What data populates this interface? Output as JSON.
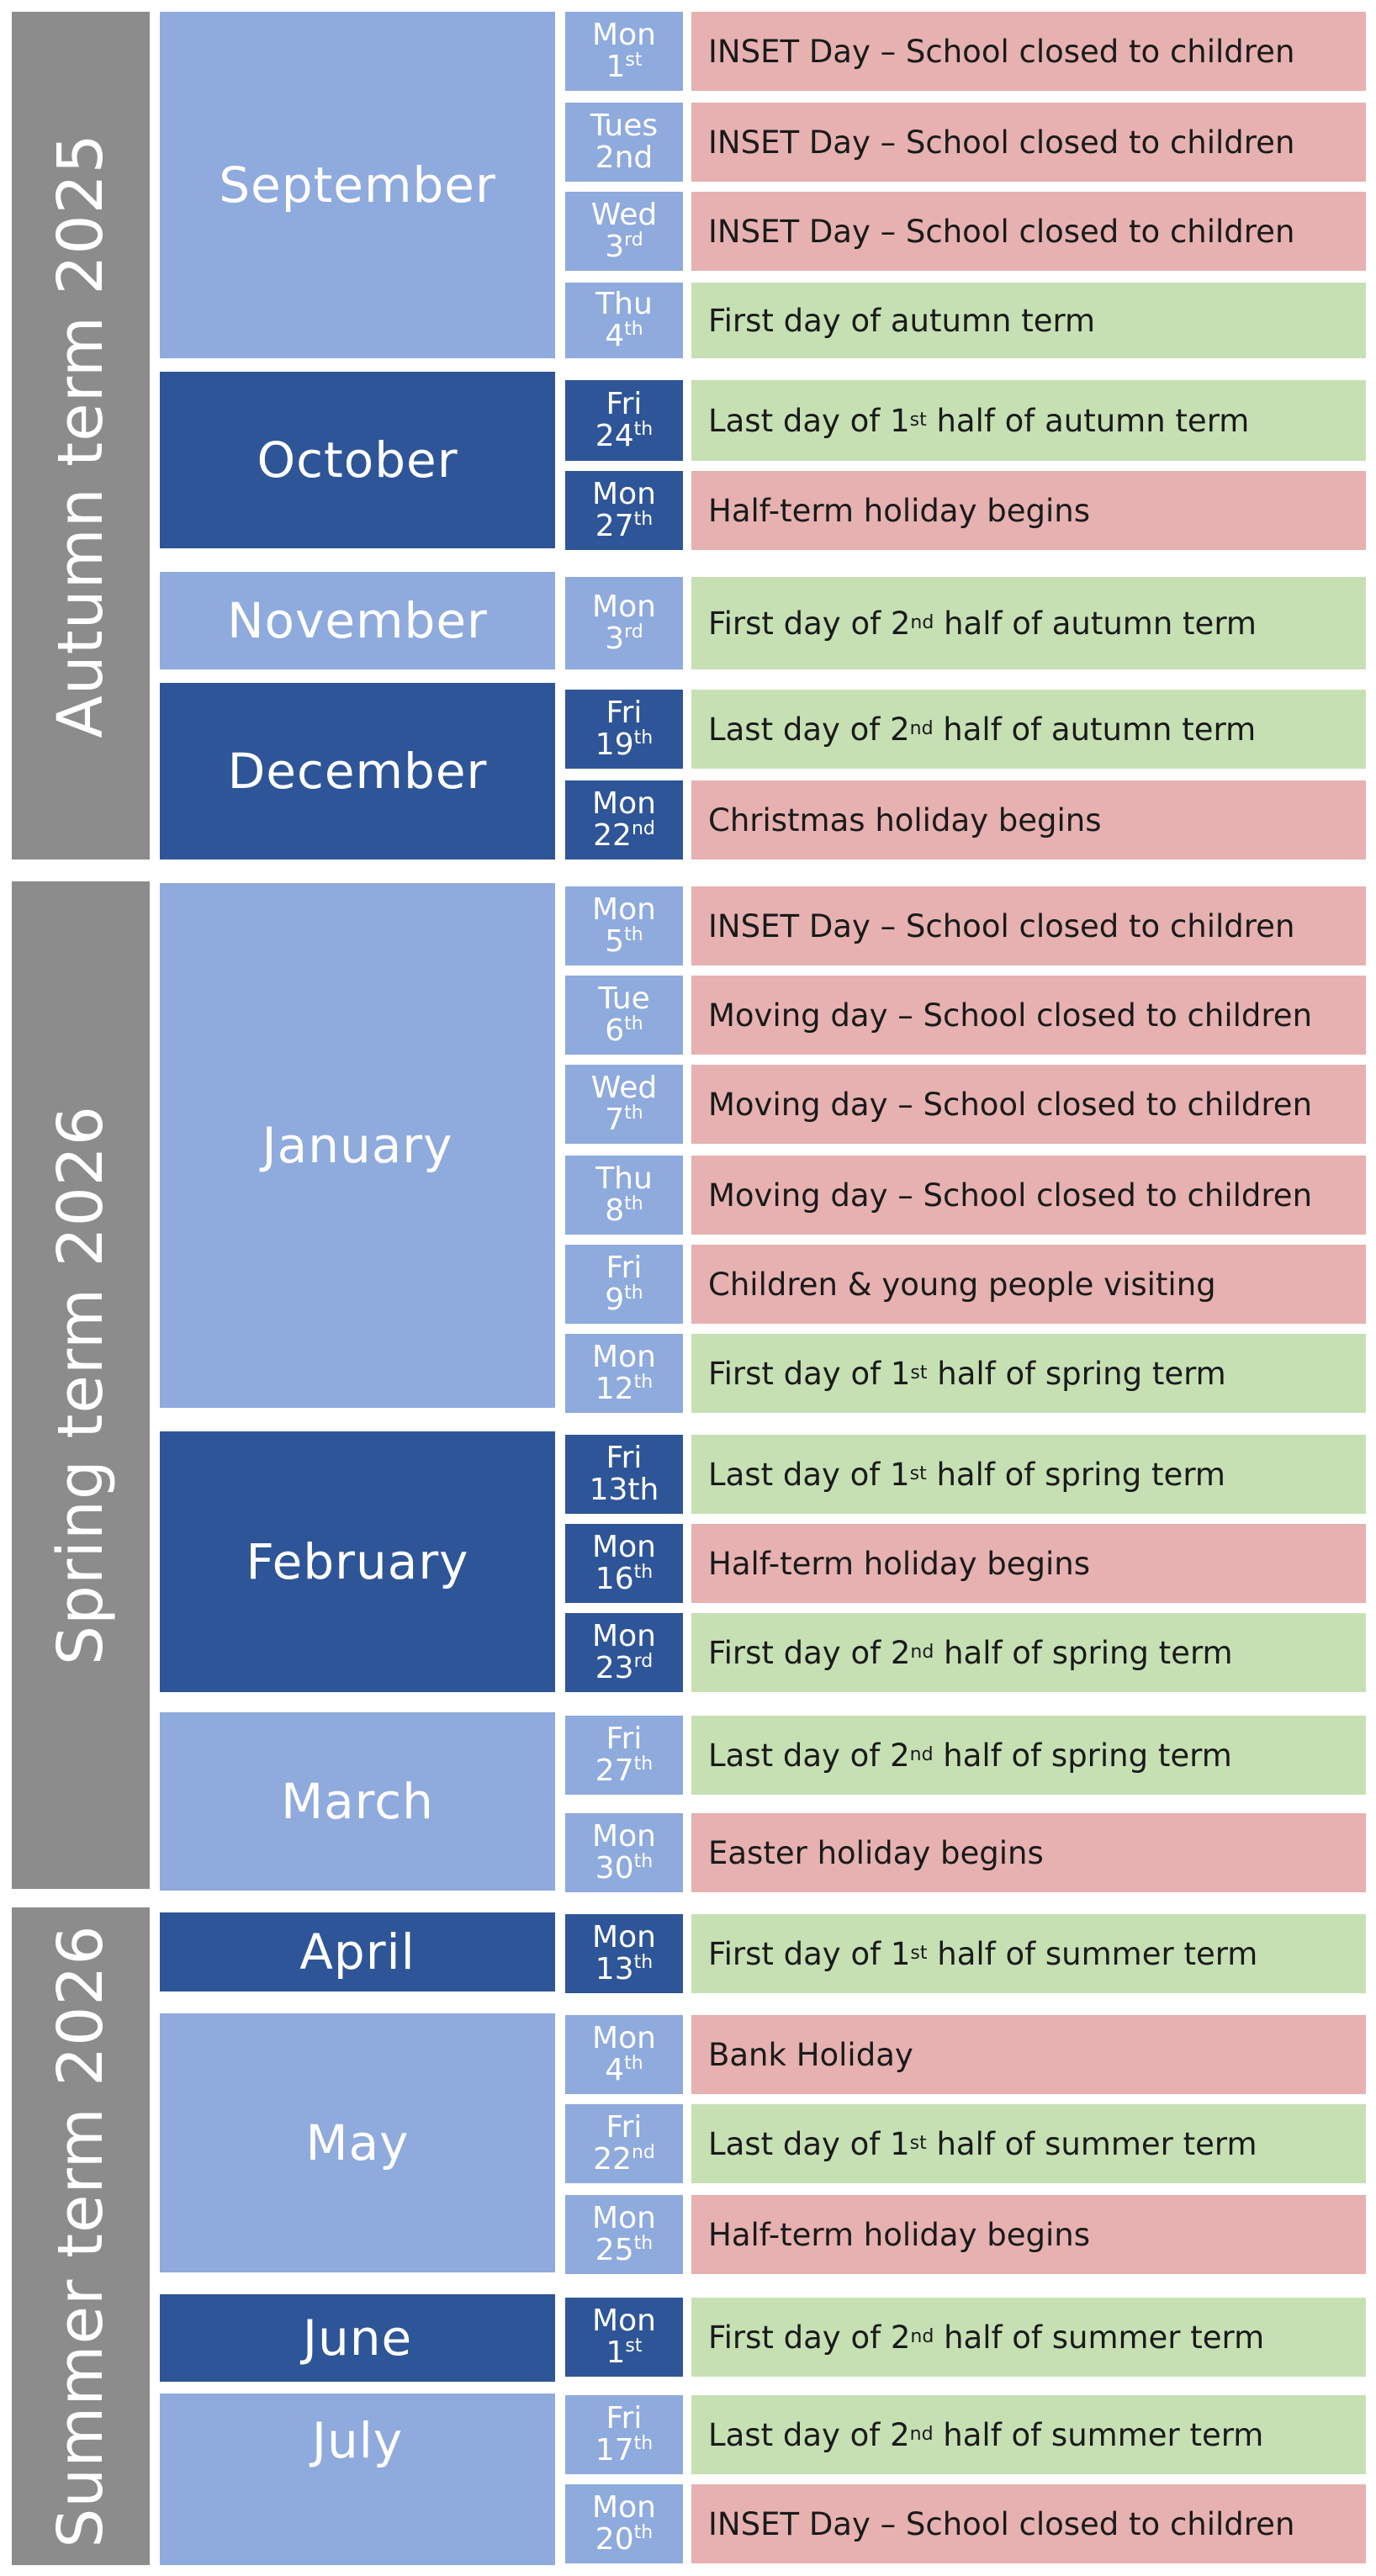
{
  "terms": [
    {
      "label": "Autumn term 2025"
    },
    {
      "label": "Spring term 2026"
    },
    {
      "label": "Summer term 2026"
    }
  ],
  "months": [
    {
      "name": "September",
      "shade": "light"
    },
    {
      "name": "October",
      "shade": "dark"
    },
    {
      "name": "November",
      "shade": "light"
    },
    {
      "name": "December",
      "shade": "dark"
    },
    {
      "name": "January",
      "shade": "light"
    },
    {
      "name": "February",
      "shade": "dark"
    },
    {
      "name": "March",
      "shade": "light"
    },
    {
      "name": "April",
      "shade": "dark"
    },
    {
      "name": "May",
      "shade": "light"
    },
    {
      "name": "June",
      "shade": "dark"
    },
    {
      "name": "July",
      "shade": "light"
    }
  ],
  "entries": [
    {
      "day": "Mon",
      "num": "1",
      "suffix": "st",
      "type": "closed",
      "text": "INSET Day – School closed to children"
    },
    {
      "day": "Tues",
      "num": "2nd",
      "suffix": "",
      "type": "closed",
      "text": "INSET Day – School closed to children"
    },
    {
      "day": "Wed",
      "num": "3",
      "suffix": "rd",
      "type": "closed",
      "text": "INSET Day – School closed to children"
    },
    {
      "day": "Thu",
      "num": "4",
      "suffix": "th",
      "type": "open",
      "text": "First day of autumn term"
    },
    {
      "day": "Fri",
      "num": "24",
      "suffix": "th",
      "type": "open",
      "text": "Last day of 1",
      "textSup": "st",
      "textAfter": " half of autumn term"
    },
    {
      "day": "Mon",
      "num": "27",
      "suffix": "th",
      "type": "closed",
      "text": "Half-term holiday begins"
    },
    {
      "day": "Mon",
      "num": "3",
      "suffix": "rd",
      "type": "open",
      "text": "First day of 2",
      "textSup": "nd",
      "textAfter": " half of autumn term"
    },
    {
      "day": "Fri",
      "num": "19",
      "suffix": "th",
      "type": "open",
      "text": "Last day of 2",
      "textSup": "nd",
      "textAfter": " half of autumn term"
    },
    {
      "day": "Mon",
      "num": "22",
      "suffix": "nd",
      "type": "closed",
      "text": "Christmas holiday begins"
    },
    {
      "day": "Mon",
      "num": "5",
      "suffix": "th",
      "type": "closed",
      "text": "INSET Day – School closed to children"
    },
    {
      "day": "Tue",
      "num": "6",
      "suffix": "th",
      "type": "closed",
      "text": "Moving day – School closed to children"
    },
    {
      "day": "Wed",
      "num": "7",
      "suffix": "th",
      "type": "closed",
      "text": "Moving day – School closed to children"
    },
    {
      "day": "Thu",
      "num": "8",
      "suffix": "th",
      "type": "closed",
      "text": "Moving day – School closed to children"
    },
    {
      "day": "Fri",
      "num": "9",
      "suffix": "th",
      "type": "closed",
      "text": "Children & young people visiting"
    },
    {
      "day": "Mon",
      "num": "12",
      "suffix": "th",
      "type": "open",
      "text": "First day of 1",
      "textSup": "st",
      "textAfter": " half of spring term"
    },
    {
      "day": "Fri",
      "num": "13th",
      "suffix": "",
      "type": "open",
      "text": "Last day of 1",
      "textSup": "st",
      "textAfter": " half of spring term"
    },
    {
      "day": "Mon",
      "num": "16",
      "suffix": "th",
      "type": "closed",
      "text": "Half-term holiday begins"
    },
    {
      "day": "Mon",
      "num": "23",
      "suffix": "rd",
      "type": "open",
      "text": "First day of 2",
      "textSup": "nd",
      "textAfter": " half of spring term"
    },
    {
      "day": "Fri",
      "num": "27",
      "suffix": "th",
      "type": "open",
      "text": "Last day of 2",
      "textSup": "nd",
      "textAfter": " half of spring term"
    },
    {
      "day": "Mon",
      "num": "30",
      "suffix": "th",
      "type": "closed",
      "text": "Easter holiday begins"
    },
    {
      "day": "Mon",
      "num": "13",
      "suffix": "th",
      "type": "open",
      "text": "First day of 1",
      "textSup": "st",
      "textAfter": " half of summer term"
    },
    {
      "day": "Mon",
      "num": "4",
      "suffix": "th",
      "type": "closed",
      "text": "Bank Holiday"
    },
    {
      "day": "Fri",
      "num": "22",
      "suffix": "nd",
      "type": "open",
      "text": "Last day of 1",
      "textSup": "st",
      "textAfter": " half of summer term"
    },
    {
      "day": "Mon",
      "num": "25",
      "suffix": "th",
      "type": "closed",
      "text": "Half-term holiday begins"
    },
    {
      "day": "Mon",
      "num": "1",
      "suffix": "st",
      "type": "open",
      "text": "First day of 2",
      "textSup": "nd",
      "textAfter": " half of summer term"
    },
    {
      "day": "Fri",
      "num": "17",
      "suffix": "th",
      "type": "open",
      "text": "Last day of 2",
      "textSup": "nd",
      "textAfter": " half of summer term"
    },
    {
      "day": "Mon",
      "num": "20",
      "suffix": "th",
      "type": "closed",
      "text": "INSET Day – School closed to children"
    }
  ],
  "colors": {
    "term_bar": "#8c8c8c",
    "month_light": "#8faadc",
    "month_dark": "#2e5597",
    "closed": "#e6b1b0",
    "open": "#c6e0b4"
  }
}
